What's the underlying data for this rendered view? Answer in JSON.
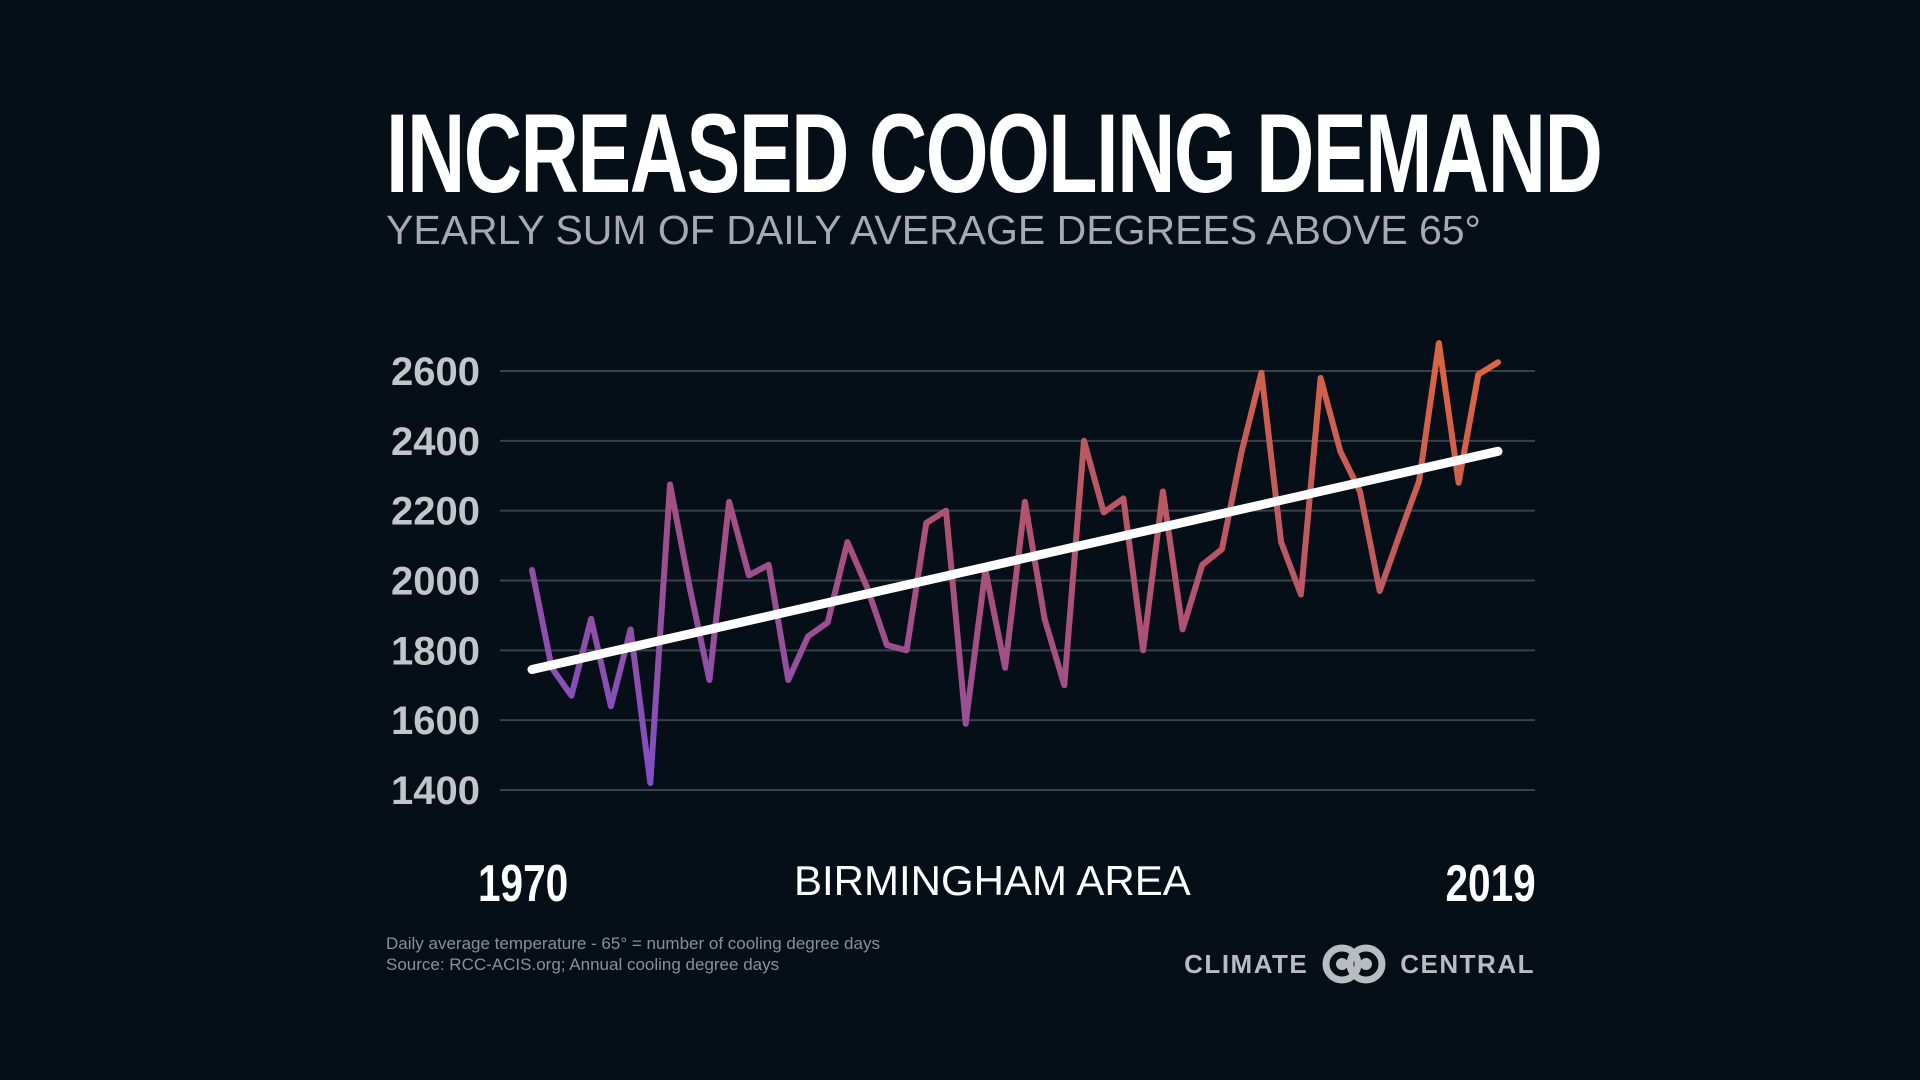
{
  "header": {
    "title": "INCREASED COOLING DEMAND",
    "subtitle": "YEARLY SUM OF DAILY AVERAGE DEGREES ABOVE 65°"
  },
  "footer": {
    "note1": "Daily average temperature - 65° = number of cooling degree days",
    "note2": "Source: RCC-ACIS.org; Annual cooling degree days",
    "logo_left": "CLIMATE",
    "logo_right": "CENTRAL"
  },
  "colors": {
    "background": "#060e17",
    "line_start": "#7a4fd0",
    "line_end": "#e0673c",
    "trend": "#ffffff",
    "grid": "#3a4149"
  },
  "chart_data": {
    "type": "line",
    "title": "INCREASED COOLING DEMAND",
    "subtitle": "YEARLY SUM OF DAILY AVERAGE DEGREES ABOVE 65°",
    "region_label": "BIRMINGHAM AREA",
    "x_start_label": "1970",
    "x_end_label": "2019",
    "xlim": [
      1970,
      2019
    ],
    "ylim": [
      1400,
      2600
    ],
    "yticks": [
      2600,
      2400,
      2200,
      2000,
      1800,
      1600,
      1400
    ],
    "grid": true,
    "x": [
      1970,
      1971,
      1972,
      1973,
      1974,
      1975,
      1976,
      1977,
      1978,
      1979,
      1980,
      1981,
      1982,
      1983,
      1984,
      1985,
      1986,
      1987,
      1988,
      1989,
      1990,
      1991,
      1992,
      1993,
      1994,
      1995,
      1996,
      1997,
      1998,
      1999,
      2000,
      2001,
      2002,
      2003,
      2004,
      2005,
      2006,
      2007,
      2008,
      2009,
      2010,
      2011,
      2012,
      2013,
      2014,
      2015,
      2016,
      2017,
      2018,
      2019
    ],
    "series": [
      {
        "values": [
          2030,
          1750,
          1670,
          1890,
          1640,
          1860,
          1420,
          2275,
          1980,
          1715,
          2225,
          2015,
          2045,
          1715,
          1840,
          1880,
          2110,
          1980,
          1815,
          1800,
          2165,
          2200,
          1590,
          2030,
          1750,
          2225,
          1890,
          1700,
          2400,
          2195,
          2235,
          1800,
          2255,
          1860,
          2045,
          2090,
          2370,
          2595,
          2110,
          1960,
          2580,
          2370,
          2255,
          1970,
          2130,
          2285,
          2680,
          2280,
          2590,
          2625
        ]
      }
    ],
    "trend_line": {
      "x": [
        1970,
        2019
      ],
      "y": [
        1745,
        2370
      ]
    }
  }
}
